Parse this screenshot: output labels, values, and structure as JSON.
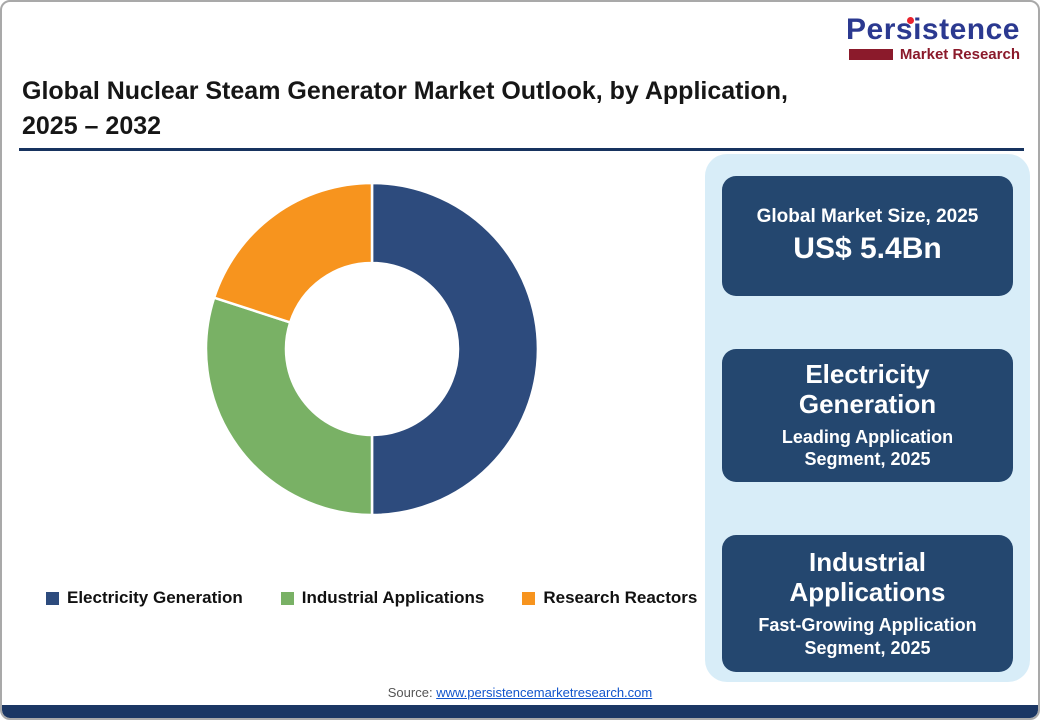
{
  "logo": {
    "name": "Persistence",
    "subtitle": "Market Research"
  },
  "header": {
    "title_line1": "Global Nuclear Steam Generator Market Outlook, by Application,",
    "title_line2": "2025 – 2032"
  },
  "chart_data": {
    "type": "pie",
    "donut": true,
    "title": "Global Nuclear Steam Generator Market Outlook, by Application, 2025 – 2032",
    "direction": "clockwise",
    "start_angle_deg": 0,
    "values_unit": "estimated percent share",
    "segments": [
      {
        "label": "Electricity Generation",
        "value": 50,
        "color": "#2d4b7d"
      },
      {
        "label": "Industrial Applications",
        "value": 30,
        "color": "#79b165"
      },
      {
        "label": "Research Reactors",
        "value": 20,
        "color": "#f7941e"
      }
    ],
    "legend_position": "bottom"
  },
  "panel": {
    "cards": [
      {
        "line1": "Global Market Size, 2025",
        "value": "US$ 5.4Bn"
      },
      {
        "title": "Electricity Generation",
        "subtitle": "Leading Application Segment, 2025"
      },
      {
        "title": "Industrial Applications",
        "subtitle": "Fast-Growing Application Segment, 2025"
      }
    ]
  },
  "footer": {
    "source_label": "Source:",
    "source_link": "www.persistencemarketresearch.com"
  },
  "colors": {
    "accent_navy": "#1b3764",
    "card_navy": "#24476f",
    "panel_blue": "#d8edf8",
    "logo_blue": "#2b3990",
    "logo_maroon": "#8b1a2b"
  }
}
